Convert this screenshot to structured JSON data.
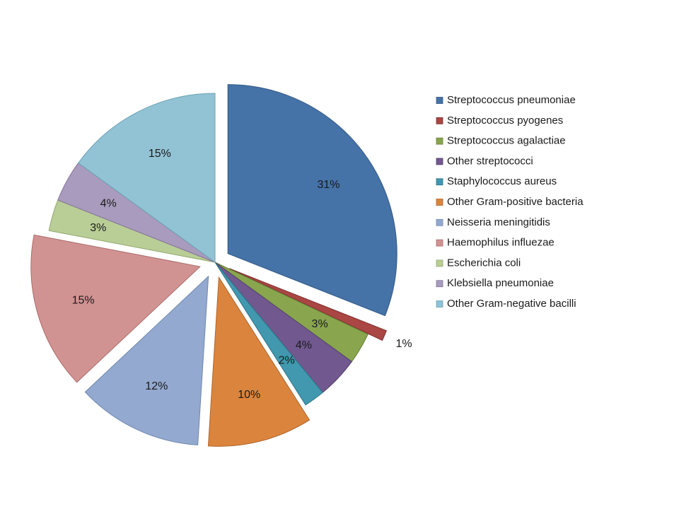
{
  "chart_data": {
    "type": "pie",
    "title": "",
    "legend_position": "right",
    "categories": [
      "Streptococcus pneumoniae",
      "Streptococcus pyogenes",
      "Streptococcus agalactiae",
      "Other streptococci",
      "Staphylococcus aureus",
      "Other Gram-positive bacteria",
      "Neisseria meningitidis",
      "Haemophilus influezae",
      "Escherichia coli",
      "Klebsiella pneumoniae",
      "Other Gram-negative bacilli"
    ],
    "values": [
      31,
      1,
      3,
      4,
      2,
      10,
      12,
      15,
      3,
      4,
      15
    ],
    "data_labels": [
      "31%",
      "1%",
      "3%",
      "4%",
      "2%",
      "10%",
      "12%",
      "15%",
      "3%",
      "4%",
      "15%"
    ],
    "exploded": [
      true,
      true,
      false,
      false,
      false,
      true,
      true,
      true,
      false,
      false,
      false
    ],
    "colors": [
      "#4572A7",
      "#AA4643",
      "#89A54E",
      "#71588F",
      "#4198AF",
      "#DB843D",
      "#93A9CF",
      "#D19392",
      "#B9CD96",
      "#A99BBD",
      "#92C3D4"
    ],
    "edge_colors": [
      "#335a86",
      "#7e302e",
      "#66803a",
      "#53406b",
      "#2f7486",
      "#b0652a",
      "#6f86ad",
      "#ad6b6a",
      "#90a86e",
      "#84769a",
      "#6ca1b4"
    ]
  }
}
